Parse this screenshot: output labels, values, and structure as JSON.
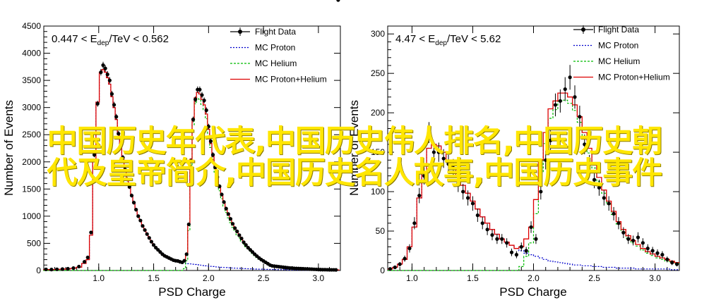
{
  "chart_data": [
    {
      "type": "histogram",
      "xlabel": "PSD Charge",
      "ylabel": "Number of Events",
      "xlim": [
        0.5,
        3.2
      ],
      "ylim": [
        0,
        4500
      ],
      "xticks": [
        "1.0",
        "1.5",
        "2.0",
        "2.5",
        "3.0"
      ],
      "xtick_values": [
        1.0,
        1.5,
        2.0,
        2.5,
        3.0
      ],
      "yticks": [
        "0",
        "500",
        "1000",
        "1500",
        "2000",
        "2500",
        "3000",
        "3500",
        "4000",
        "4500"
      ],
      "ytick_values": [
        0,
        500,
        1000,
        1500,
        2000,
        2500,
        3000,
        3500,
        4000,
        4500
      ],
      "annotation_parts": [
        "0.447 < E",
        "dep",
        "/TeV < 0.562"
      ],
      "legend": [
        "Flight Data",
        "MC Proton",
        "MC Helium",
        "MC Proton+Helium"
      ],
      "legend_position": "top-right",
      "x": [
        0.52,
        0.57,
        0.62,
        0.67,
        0.72,
        0.77,
        0.82,
        0.87,
        0.9,
        0.93,
        0.96,
        0.99,
        1.02,
        1.04,
        1.06,
        1.08,
        1.1,
        1.12,
        1.14,
        1.16,
        1.18,
        1.2,
        1.22,
        1.24,
        1.26,
        1.28,
        1.3,
        1.32,
        1.34,
        1.36,
        1.38,
        1.4,
        1.42,
        1.44,
        1.46,
        1.48,
        1.5,
        1.52,
        1.54,
        1.56,
        1.58,
        1.6,
        1.62,
        1.64,
        1.66,
        1.68,
        1.7,
        1.72,
        1.74,
        1.76,
        1.78,
        1.8,
        1.82,
        1.84,
        1.86,
        1.88,
        1.9,
        1.92,
        1.94,
        1.96,
        1.98,
        2.0,
        2.02,
        2.04,
        2.06,
        2.08,
        2.1,
        2.12,
        2.14,
        2.16,
        2.18,
        2.2,
        2.22,
        2.24,
        2.26,
        2.28,
        2.3,
        2.32,
        2.34,
        2.36,
        2.38,
        2.4,
        2.42,
        2.44,
        2.46,
        2.48,
        2.5,
        2.52,
        2.54,
        2.56,
        2.58,
        2.6,
        2.62,
        2.64,
        2.66,
        2.68,
        2.7,
        2.72,
        2.74,
        2.76,
        2.78,
        2.8,
        2.82,
        2.84,
        2.86,
        2.88,
        2.9,
        2.92,
        2.94,
        2.96,
        2.98,
        3.0,
        3.02,
        3.04,
        3.06,
        3.08,
        3.1,
        3.12,
        3.14,
        3.16,
        3.18
      ],
      "flight": [
        20,
        18,
        22,
        26,
        32,
        44,
        72,
        160,
        240,
        700,
        2130,
        3070,
        3650,
        3780,
        3720,
        3610,
        3500,
        3250,
        3050,
        2830,
        2520,
        2300,
        2080,
        1860,
        1680,
        1540,
        1380,
        1250,
        1120,
        1000,
        920,
        820,
        745,
        670,
        600,
        530,
        470,
        420,
        380,
        340,
        300,
        270,
        250,
        230,
        210,
        190,
        180,
        175,
        160,
        150,
        180,
        300,
        850,
        2020,
        2780,
        3150,
        3330,
        3330,
        3230,
        3130,
        2950,
        2650,
        2380,
        2130,
        1900,
        1720,
        1550,
        1400,
        1260,
        1140,
        1040,
        950,
        860,
        780,
        720,
        650,
        590,
        520,
        470,
        420,
        380,
        340,
        300,
        265,
        230,
        200,
        175,
        150,
        125,
        100,
        85,
        80,
        75,
        70,
        65,
        60,
        55,
        50,
        45,
        45,
        40,
        38,
        36,
        34,
        32,
        30,
        28,
        26,
        24,
        22,
        20,
        18,
        16,
        15,
        15,
        14,
        13,
        12,
        12,
        11
      ],
      "mc_total": [
        15,
        17,
        20,
        24,
        30,
        40,
        60,
        130,
        200,
        650,
        2050,
        3100,
        3650,
        3700,
        3650,
        3550,
        3430,
        3200,
        3000,
        2780,
        2500,
        2280,
        2060,
        1850,
        1670,
        1520,
        1370,
        1240,
        1110,
        1000,
        910,
        820,
        740,
        660,
        590,
        520,
        460,
        410,
        370,
        330,
        295,
        265,
        240,
        220,
        200,
        185,
        175,
        165,
        155,
        145,
        175,
        310,
        860,
        2050,
        2800,
        3180,
        3280,
        3250,
        3150,
        3050,
        2880,
        2600,
        2340,
        2100,
        1880,
        1700,
        1530,
        1380,
        1240,
        1120,
        1020,
        930,
        840,
        770,
        700,
        640,
        580,
        520,
        470,
        420,
        380,
        340,
        300,
        265,
        230,
        200,
        175,
        150,
        125,
        105,
        90,
        85,
        80,
        75,
        70,
        65,
        60,
        55,
        50,
        47,
        44,
        42,
        40,
        38,
        36,
        34,
        32,
        30,
        28,
        26,
        24,
        22,
        20,
        18,
        16,
        15,
        14,
        13,
        12,
        12,
        11
      ],
      "mc_proton": [
        15,
        17,
        20,
        24,
        30,
        40,
        60,
        130,
        200,
        650,
        2050,
        3100,
        3650,
        3700,
        3650,
        3550,
        3430,
        3200,
        3000,
        2780,
        2500,
        2280,
        2060,
        1850,
        1670,
        1520,
        1370,
        1240,
        1110,
        1000,
        910,
        820,
        740,
        660,
        590,
        520,
        460,
        410,
        370,
        330,
        295,
        265,
        240,
        220,
        200,
        185,
        175,
        165,
        155,
        145,
        140,
        130,
        125,
        120,
        115,
        110,
        105,
        100,
        95,
        90,
        85,
        80,
        76,
        72,
        68,
        65,
        62,
        59,
        56,
        53,
        50,
        48,
        46,
        44,
        42,
        40,
        38,
        36,
        34,
        32,
        30,
        28,
        27,
        26,
        25,
        24,
        23,
        22,
        21,
        20,
        19,
        18,
        17,
        16,
        15,
        14,
        13,
        12,
        11,
        10,
        9,
        8,
        7,
        6,
        5,
        5,
        4,
        4,
        3,
        3,
        2,
        2,
        2,
        1,
        1,
        1,
        1,
        1,
        1
      ],
      "mc_helium": [
        0,
        0,
        0,
        0,
        0,
        0,
        0,
        0,
        0,
        0,
        0,
        0,
        0,
        0,
        0,
        0,
        0,
        0,
        0,
        0,
        0,
        0,
        0,
        0,
        0,
        0,
        0,
        0,
        0,
        0,
        0,
        0,
        0,
        0,
        0,
        0,
        0,
        0,
        0,
        0,
        0,
        0,
        0,
        0,
        0,
        0,
        0,
        0,
        0,
        0,
        35,
        180,
        735,
        1930,
        2685,
        3070,
        3175,
        3150,
        3055,
        2960,
        2795,
        2520,
        2264,
        2028,
        1812,
        1635,
        1468,
        1321,
        1184,
        1067,
        970,
        882,
        794,
        726,
        658,
        600,
        542,
        484,
        436,
        388,
        350,
        312,
        273,
        239,
        205,
        176,
        152,
        128,
        104,
        85,
        71,
        67,
        63,
        59,
        55,
        51,
        47,
        43,
        39,
        37,
        35,
        34,
        33,
        32,
        31,
        29,
        27,
        25,
        23,
        21,
        19,
        17,
        15,
        14,
        13,
        12,
        11,
        11,
        10
      ],
      "errors": [
        5,
        5,
        5,
        5,
        6,
        7,
        9,
        13,
        16,
        27,
        46,
        55,
        60,
        62,
        61,
        60,
        59,
        57,
        55,
        53,
        50,
        48,
        46,
        43,
        41,
        39,
        37,
        35,
        33,
        32,
        30,
        29,
        27,
        26,
        24,
        23,
        22,
        20,
        19,
        18,
        17,
        16,
        16,
        15,
        14,
        14,
        13,
        13,
        13,
        12,
        13,
        17,
        29,
        45,
        53,
        56,
        58,
        58,
        57,
        56,
        54,
        51,
        49,
        46,
        44,
        41,
        39,
        37,
        35,
        34,
        32,
        31,
        29,
        28,
        27,
        25,
        24,
        23,
        22,
        20,
        19,
        18,
        17,
        16,
        15,
        14,
        13,
        12,
        11,
        10,
        9,
        9,
        9,
        8,
        8,
        8,
        7,
        7,
        7,
        7,
        6,
        6,
        6,
        6,
        5,
        5,
        5,
        5,
        5,
        4,
        4,
        4,
        4,
        4,
        4,
        3,
        3,
        3,
        3,
        3
      ]
    },
    {
      "type": "histogram",
      "xlabel": "PSD Charge",
      "ylabel": "Number of Events",
      "xlim": [
        0.8,
        3.2
      ],
      "ylim": [
        0,
        310
      ],
      "xticks": [
        "1.0",
        "1.5",
        "2.0",
        "2.5",
        "3.0"
      ],
      "xtick_values": [
        1.0,
        1.5,
        2.0,
        2.5,
        3.0
      ],
      "yticks": [
        "0",
        "50",
        "100",
        "150",
        "200",
        "250",
        "300"
      ],
      "ytick_values": [
        0,
        50,
        100,
        150,
        200,
        250,
        300
      ],
      "annotation_parts": [
        "4.47 < E",
        "dep",
        "/TeV < 5.62"
      ],
      "legend": [
        "Flight Data",
        "MC Proton",
        "MC Helium",
        "MC Proton+Helium"
      ],
      "legend_position": "top-right",
      "x": [
        0.82,
        0.86,
        0.9,
        0.94,
        0.98,
        1.02,
        1.06,
        1.1,
        1.14,
        1.18,
        1.22,
        1.26,
        1.3,
        1.34,
        1.38,
        1.42,
        1.46,
        1.5,
        1.54,
        1.58,
        1.62,
        1.66,
        1.7,
        1.74,
        1.78,
        1.82,
        1.86,
        1.9,
        1.94,
        1.98,
        2.02,
        2.06,
        2.1,
        2.14,
        2.18,
        2.22,
        2.26,
        2.3,
        2.34,
        2.38,
        2.42,
        2.46,
        2.5,
        2.54,
        2.58,
        2.62,
        2.66,
        2.7,
        2.74,
        2.78,
        2.82,
        2.86,
        2.9,
        2.94,
        2.98,
        3.02,
        3.06,
        3.1,
        3.14,
        3.18
      ],
      "flight": [
        2,
        4,
        8,
        15,
        28,
        60,
        95,
        120,
        175,
        150,
        150,
        142,
        135,
        130,
        110,
        100,
        92,
        85,
        70,
        60,
        52,
        45,
        40,
        40,
        35,
        23,
        20,
        30,
        25,
        55,
        40,
        100,
        140,
        165,
        210,
        215,
        230,
        245,
        220,
        195,
        160,
        135,
        115,
        105,
        92,
        85,
        72,
        60,
        48,
        40,
        38,
        42,
        35,
        28,
        25,
        22,
        20,
        14,
        10,
        8
      ],
      "mc_total": [
        2,
        4,
        8,
        14,
        30,
        55,
        92,
        125,
        155,
        160,
        158,
        150,
        140,
        128,
        118,
        108,
        98,
        88,
        78,
        68,
        60,
        52,
        46,
        40,
        36,
        32,
        28,
        30,
        40,
        55,
        90,
        140,
        175,
        205,
        215,
        225,
        225,
        220,
        210,
        195,
        175,
        155,
        135,
        118,
        102,
        88,
        75,
        62,
        52,
        44,
        38,
        33,
        28,
        24,
        21,
        18,
        16,
        14,
        12,
        10
      ],
      "mc_proton": [
        2,
        4,
        8,
        14,
        30,
        55,
        92,
        125,
        155,
        160,
        158,
        150,
        140,
        128,
        118,
        108,
        98,
        88,
        78,
        68,
        60,
        52,
        46,
        40,
        36,
        32,
        28,
        25,
        22,
        20,
        18,
        16,
        14,
        12,
        11,
        10,
        9,
        8,
        7,
        7,
        6,
        6,
        5,
        5,
        4,
        4,
        4,
        3,
        3,
        3,
        3,
        2,
        2,
        2,
        2,
        2,
        2,
        2,
        1,
        1
      ],
      "mc_helium": [
        0,
        0,
        0,
        0,
        0,
        0,
        0,
        0,
        0,
        0,
        0,
        0,
        0,
        0,
        0,
        0,
        0,
        0,
        0,
        0,
        0,
        0,
        0,
        0,
        0,
        0,
        0,
        5,
        18,
        35,
        72,
        124,
        161,
        193,
        204,
        215,
        216,
        212,
        203,
        188,
        169,
        149,
        130,
        113,
        98,
        84,
        71,
        59,
        49,
        41,
        35,
        31,
        26,
        22,
        19,
        16,
        14,
        12,
        11,
        9
      ],
      "errors": [
        1.4,
        2,
        2.8,
        3.9,
        5.3,
        7.7,
        9.7,
        11,
        13.2,
        12.2,
        12.2,
        11.9,
        11.6,
        11.4,
        10.5,
        10,
        9.6,
        9.2,
        8.4,
        7.7,
        7.2,
        6.7,
        6.3,
        6.3,
        5.9,
        4.8,
        4.5,
        5.5,
        5,
        7.4,
        6.3,
        10,
        11.8,
        12.8,
        14.5,
        14.7,
        15.2,
        15.7,
        14.8,
        14,
        12.6,
        11.6,
        10.7,
        10.2,
        9.6,
        9.2,
        8.5,
        7.7,
        6.9,
        6.3,
        6.2,
        6.5,
        5.9,
        5.3,
        5,
        4.7,
        4.5,
        3.7,
        3.2,
        2.8
      ]
    }
  ],
  "overlay": {
    "line1": "中国历史年代表,中国历史伟人排名,中国历史朝",
    "line2": "代及皇帝简介,中国历史名人故事,中国历史事件"
  },
  "colors": {
    "flight": "#000000",
    "mc_proton": "#0000cc",
    "mc_helium": "#00bb00",
    "mc_total": "#dd0000",
    "overlay": "#ffe600"
  }
}
